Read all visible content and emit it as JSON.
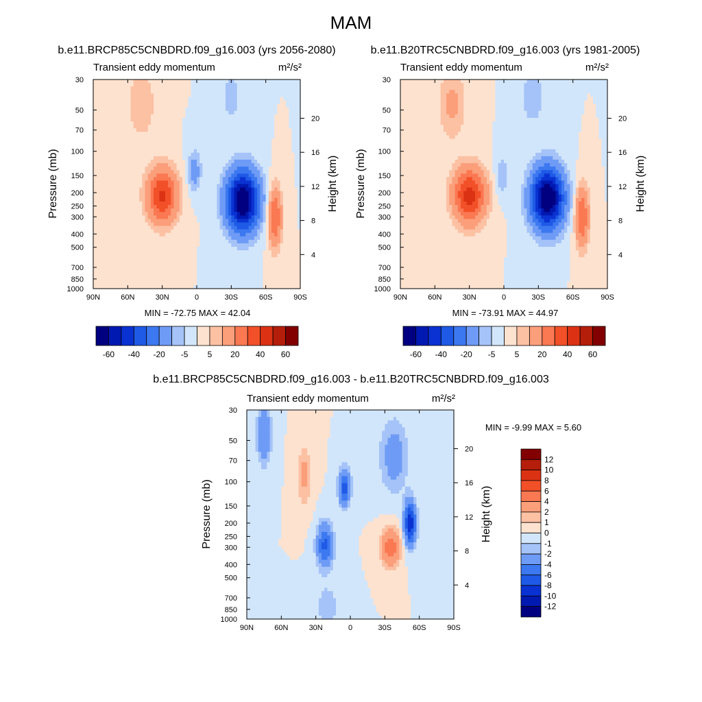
{
  "figure": {
    "title": "MAM",
    "cbar_colors_20": [
      "#000080",
      "#0019b0",
      "#0a32d2",
      "#1e5ae6",
      "#3c78f0",
      "#6e9bf5",
      "#a5c3f8",
      "#d2e6fb",
      "#fde2cf",
      "#fcc0a3",
      "#fb9e7a",
      "#fa7852",
      "#f25028",
      "#dc3214",
      "#b41e0a",
      "#820000"
    ],
    "cbar_colors_diff": [
      "#000080",
      "#0019b0",
      "#0a32d2",
      "#1e5ae6",
      "#3c78f0",
      "#6e9bf5",
      "#a5c3f8",
      "#d2e6fb",
      "#fde2cf",
      "#fcc0a3",
      "#fb9e7a",
      "#fa7852",
      "#f25028",
      "#dc3214",
      "#b41e0a",
      "#820000"
    ]
  },
  "chart_data": [
    {
      "type": "heatmap",
      "title": "b.e11.BRCP85C5CNBDRD.f09_g16.003 (yrs 2056-2080)",
      "left_label": "Transient eddy momentum",
      "right_label": "m²/s²",
      "ylabel": "Pressure (mb)",
      "ylabel_right": "Height (km)",
      "x_ticks": [
        "90N",
        "60N",
        "30N",
        "0",
        "30S",
        "60S",
        "90S"
      ],
      "y_ticks": [
        30,
        50,
        70,
        100,
        150,
        200,
        250,
        300,
        400,
        500,
        700,
        850,
        1000
      ],
      "y_right_ticks": [
        20,
        16,
        12,
        8,
        4
      ],
      "stats": "MIN = -72.75  MAX = 42.04",
      "min": -72.75,
      "max": 42.04,
      "colorbar_labels": [
        "-60",
        "-40",
        "-20",
        "-5",
        "5",
        "20",
        "40",
        "60"
      ],
      "features": [
        {
          "lat": 30,
          "p": 210,
          "amp": 42,
          "wlat": 13,
          "wlog": 0.45
        },
        {
          "lat": -40,
          "p": 230,
          "amp": -72.75,
          "wlat": 14,
          "wlog": 0.5
        },
        {
          "lat": -68,
          "p": 300,
          "amp": 30,
          "wlat": 6,
          "wlog": 0.5
        },
        {
          "lat": 2,
          "p": 140,
          "amp": -14,
          "wlat": 6,
          "wlog": 0.35
        },
        {
          "lat": 48,
          "p": 45,
          "amp": 10,
          "wlat": 12,
          "wlog": 0.6
        },
        {
          "lat": -30,
          "p": 40,
          "amp": -7,
          "wlat": 10,
          "wlog": 0.5
        }
      ]
    },
    {
      "type": "heatmap",
      "title": "b.e11.B20TRC5CNBDRD.f09_g16.003 (yrs 1981-2005)",
      "left_label": "Transient eddy momentum",
      "right_label": "m²/s²",
      "ylabel": "Pressure (mb)",
      "ylabel_right": "Height (km)",
      "x_ticks": [
        "90N",
        "60N",
        "30N",
        "0",
        "30S",
        "60S",
        "90S"
      ],
      "y_ticks": [
        30,
        50,
        70,
        100,
        150,
        200,
        250,
        300,
        400,
        500,
        700,
        850,
        1000
      ],
      "y_right_ticks": [
        20,
        16,
        12,
        8,
        4
      ],
      "stats": "MIN = -73.91  MAX = 44.97",
      "min": -73.91,
      "max": 44.97,
      "colorbar_labels": [
        "-60",
        "-40",
        "-20",
        "-5",
        "5",
        "20",
        "40",
        "60"
      ],
      "features": [
        {
          "lat": 30,
          "p": 210,
          "amp": 44.97,
          "wlat": 14,
          "wlog": 0.45
        },
        {
          "lat": -38,
          "p": 220,
          "amp": -73.91,
          "wlat": 14,
          "wlog": 0.5
        },
        {
          "lat": -68,
          "p": 300,
          "amp": 30,
          "wlat": 6,
          "wlog": 0.5
        },
        {
          "lat": 2,
          "p": 150,
          "amp": -9,
          "wlat": 6,
          "wlog": 0.35
        },
        {
          "lat": 45,
          "p": 45,
          "amp": 12,
          "wlat": 12,
          "wlog": 0.6
        },
        {
          "lat": -25,
          "p": 40,
          "amp": -9,
          "wlat": 10,
          "wlog": 0.5
        }
      ]
    },
    {
      "type": "heatmap",
      "title": "b.e11.BRCP85C5CNBDRD.f09_g16.003 - b.e11.B20TRC5CNBDRD.f09_g16.003",
      "left_label": "Transient eddy momentum",
      "right_label": "m²/s²",
      "ylabel": "Pressure (mb)",
      "ylabel_right": "Height (km)",
      "x_ticks": [
        "90N",
        "60N",
        "30N",
        "0",
        "30S",
        "60S",
        "90S"
      ],
      "y_ticks": [
        30,
        50,
        70,
        100,
        150,
        200,
        250,
        300,
        400,
        500,
        700,
        850,
        1000
      ],
      "y_right_ticks": [
        20,
        16,
        12,
        8,
        4
      ],
      "stats": "MIN =  -9.99  MAX =   5.60",
      "min": -9.99,
      "max": 5.6,
      "colorbar_labels": [
        "12",
        "10",
        "8",
        "6",
        "4",
        "2",
        "1",
        "0",
        "-1",
        "-2",
        "-4",
        "-6",
        "-8",
        "-10",
        "-12"
      ],
      "features": [
        {
          "lat": 22,
          "p": 290,
          "amp": -6.5,
          "wlat": 7,
          "wlog": 0.35
        },
        {
          "lat": 5,
          "p": 110,
          "amp": -7,
          "wlat": 5,
          "wlog": 0.3
        },
        {
          "lat": -35,
          "p": 300,
          "amp": 5.6,
          "wlat": 8,
          "wlog": 0.3
        },
        {
          "lat": -52,
          "p": 200,
          "amp": -9.99,
          "wlat": 5,
          "wlog": 0.35
        },
        {
          "lat": -38,
          "p": 65,
          "amp": -3,
          "wlat": 12,
          "wlog": 0.6
        },
        {
          "lat": 75,
          "p": 45,
          "amp": -4,
          "wlat": 6,
          "wlog": 0.5
        },
        {
          "lat": 40,
          "p": 90,
          "amp": 2.5,
          "wlat": 6,
          "wlog": 0.5
        },
        {
          "lat": 20,
          "p": 800,
          "amp": -1.5,
          "wlat": 12,
          "wlog": 0.4
        }
      ]
    }
  ]
}
